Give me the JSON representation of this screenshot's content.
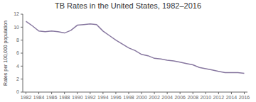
{
  "chart_data": {
    "type": "line",
    "title": "TB Rates in the United States, 1982–2016",
    "y_label": "Rates per 100,000 population",
    "x": [
      1982,
      1983,
      1984,
      1985,
      1986,
      1987,
      1988,
      1989,
      1990,
      1991,
      1992,
      1993,
      1994,
      1995,
      1996,
      1997,
      1998,
      1999,
      2000,
      2001,
      2002,
      2003,
      2004,
      2005,
      2006,
      2007,
      2008,
      2009,
      2010,
      2011,
      2012,
      2013,
      2014,
      2015,
      2016
    ],
    "values": [
      10.9,
      10.2,
      9.4,
      9.3,
      9.4,
      9.3,
      9.1,
      9.5,
      10.3,
      10.4,
      10.5,
      10.4,
      9.4,
      8.7,
      8.0,
      7.4,
      6.8,
      6.4,
      5.8,
      5.6,
      5.2,
      5.1,
      4.9,
      4.8,
      4.6,
      4.4,
      4.2,
      3.8,
      3.6,
      3.4,
      3.2,
      3.0,
      3.0,
      3.0,
      2.9
    ],
    "color": "#8878a0",
    "xlim": [
      1981.5,
      2016.5
    ],
    "xticks": [
      1982,
      1984,
      1986,
      1988,
      1990,
      1992,
      1994,
      1996,
      1998,
      2000,
      2002,
      2004,
      2006,
      2008,
      2010,
      2012,
      2014,
      2016
    ],
    "ylim": [
      0,
      12
    ],
    "yticks": [
      0,
      2,
      4,
      6,
      8,
      10,
      12
    ],
    "grid": false
  }
}
